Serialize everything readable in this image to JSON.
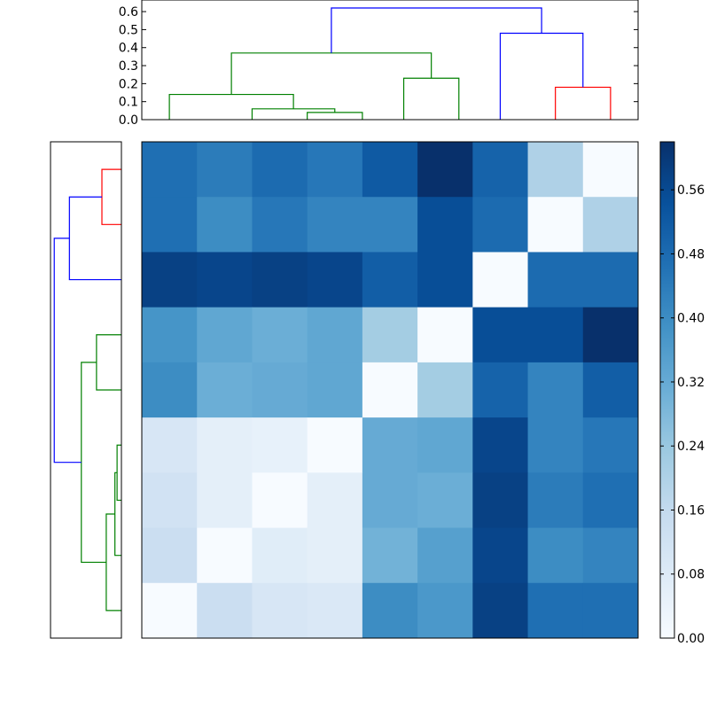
{
  "chart_data": {
    "type": "heatmap",
    "title": "",
    "xlabel": "",
    "ylabel": "",
    "colormap": "Blues",
    "vmin": 0.0,
    "vmax": 0.62,
    "matrix": [
      [
        0.47,
        0.44,
        0.48,
        0.45,
        0.52,
        0.62,
        0.5,
        0.2,
        0.0
      ],
      [
        0.47,
        0.4,
        0.45,
        0.42,
        0.42,
        0.55,
        0.48,
        0.0,
        0.2
      ],
      [
        0.58,
        0.57,
        0.58,
        0.57,
        0.51,
        0.55,
        0.0,
        0.48,
        0.48
      ],
      [
        0.38,
        0.33,
        0.31,
        0.33,
        0.22,
        0.0,
        0.55,
        0.55,
        0.62
      ],
      [
        0.4,
        0.31,
        0.32,
        0.33,
        0.0,
        0.22,
        0.5,
        0.42,
        0.51
      ],
      [
        0.1,
        0.06,
        0.05,
        0.0,
        0.32,
        0.33,
        0.57,
        0.42,
        0.45
      ],
      [
        0.12,
        0.06,
        0.0,
        0.06,
        0.32,
        0.31,
        0.58,
        0.44,
        0.47
      ],
      [
        0.14,
        0.0,
        0.07,
        0.06,
        0.3,
        0.35,
        0.57,
        0.4,
        0.42
      ],
      [
        0.0,
        0.14,
        0.1,
        0.09,
        0.4,
        0.37,
        0.58,
        0.47,
        0.47
      ]
    ],
    "colorbar": {
      "ticks": [
        "0.00",
        "0.08",
        "0.16",
        "0.24",
        "0.32",
        "0.40",
        "0.48",
        "0.56"
      ],
      "tick_values": [
        0.0,
        0.08,
        0.16,
        0.24,
        0.32,
        0.4,
        0.48,
        0.56
      ]
    },
    "top_dendrogram": {
      "ylim": [
        0,
        0.63
      ],
      "yticks": [
        "0.0",
        "0.1",
        "0.2",
        "0.3",
        "0.4",
        "0.5",
        "0.6"
      ],
      "ytick_values": [
        0.0,
        0.1,
        0.2,
        0.3,
        0.4,
        0.5,
        0.6
      ],
      "links": [
        {
          "x": [
            3,
            3,
            4,
            4
          ],
          "h": [
            0.0,
            0.04,
            0.04,
            0.0
          ],
          "color": "#008000"
        },
        {
          "x": [
            2,
            2,
            3.5,
            3.5
          ],
          "h": [
            0.0,
            0.06,
            0.06,
            0.04
          ],
          "color": "#008000"
        },
        {
          "x": [
            0.5,
            0.5,
            2.75,
            2.75
          ],
          "h": [
            0.0,
            0.14,
            0.14,
            0.06
          ],
          "color": "#008000"
        },
        {
          "x": [
            4.75,
            4.75,
            5.75,
            5.75
          ],
          "h": [
            0.0,
            0.23,
            0.23,
            0.0
          ],
          "color": "#008000"
        },
        {
          "x": [
            1.625,
            1.625,
            5.25,
            5.25
          ],
          "h": [
            0.14,
            0.37,
            0.37,
            0.23
          ],
          "color": "#008000"
        },
        {
          "x": [
            7.5,
            7.5,
            8.5,
            8.5
          ],
          "h": [
            0.0,
            0.18,
            0.18,
            0.0
          ],
          "color": "#ff0000"
        },
        {
          "x": [
            6.5,
            6.5,
            8.0,
            8.0
          ],
          "h": [
            0.0,
            0.48,
            0.48,
            0.18
          ],
          "color": "#0000ff"
        },
        {
          "x": [
            3.4375,
            3.4375,
            7.25,
            7.25
          ],
          "h": [
            0.37,
            0.62,
            0.62,
            0.48
          ],
          "color": "#0000ff"
        }
      ]
    },
    "left_dendrogram": {
      "ylim": [
        0,
        0.63
      ],
      "links": [
        {
          "y": [
            0.5,
            0.5,
            1.5,
            1.5
          ],
          "h": [
            0.0,
            0.18,
            0.18,
            0.0
          ],
          "color": "#ff0000"
        },
        {
          "y": [
            1.0,
            1.0,
            2.5,
            2.5
          ],
          "h": [
            0.18,
            0.48,
            0.48,
            0.0
          ],
          "color": "#0000ff"
        },
        {
          "y": [
            3.5,
            3.5,
            4.5,
            4.5
          ],
          "h": [
            0.0,
            0.23,
            0.23,
            0.0
          ],
          "color": "#008000"
        },
        {
          "y": [
            5.5,
            5.5,
            6.5,
            6.5
          ],
          "h": [
            0.0,
            0.04,
            0.04,
            0.0
          ],
          "color": "#008000"
        },
        {
          "y": [
            6.0,
            6.0,
            7.5,
            7.5
          ],
          "h": [
            0.04,
            0.06,
            0.06,
            0.0
          ],
          "color": "#008000"
        },
        {
          "y": [
            6.75,
            6.75,
            8.5,
            8.5
          ],
          "h": [
            0.06,
            0.14,
            0.14,
            0.0
          ],
          "color": "#008000"
        },
        {
          "y": [
            4.0,
            4.0,
            7.625,
            7.625
          ],
          "h": [
            0.23,
            0.37,
            0.37,
            0.14
          ],
          "color": "#008000"
        },
        {
          "y": [
            1.75,
            1.75,
            5.8125,
            5.8125
          ],
          "h": [
            0.48,
            0.62,
            0.62,
            0.37
          ],
          "color": "#0000ff"
        }
      ]
    }
  }
}
